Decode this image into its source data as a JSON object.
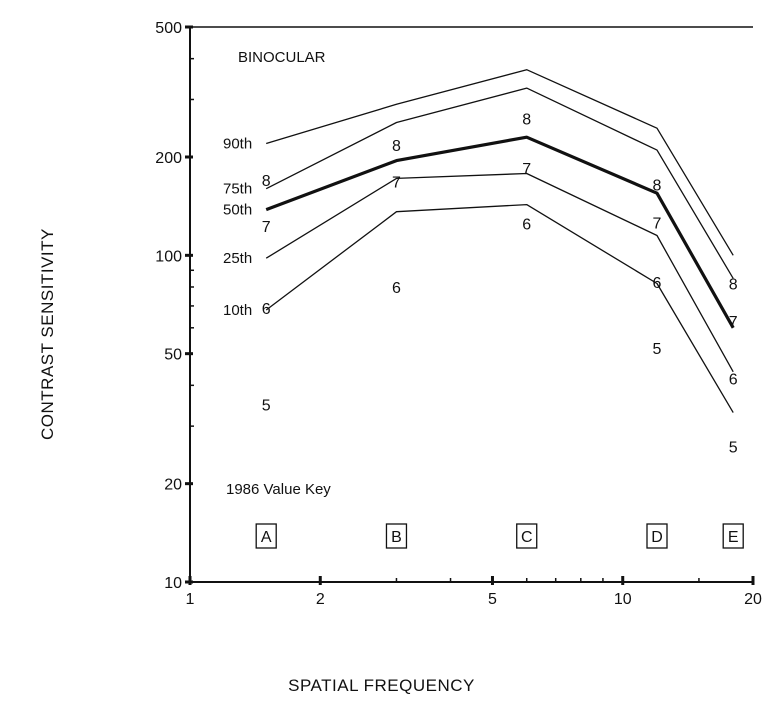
{
  "chart_data": {
    "type": "line",
    "title": "",
    "xlabel": "SPATIAL FREQUENCY",
    "ylabel": "CONTRAST SENSITIVITY",
    "x_scale": "log",
    "y_scale": "log",
    "xlim": [
      1,
      20
    ],
    "ylim": [
      10,
      500
    ],
    "x_ticks": [
      1,
      2,
      5,
      10,
      20
    ],
    "x_tick_labels": [
      "1",
      "2",
      "5",
      "10",
      "20"
    ],
    "y_ticks": [
      10,
      20,
      50,
      100,
      200,
      500
    ],
    "y_tick_labels": [
      "10",
      "20",
      "50",
      "100",
      "200",
      "500"
    ],
    "grid": false,
    "legend": "none",
    "x": [
      1.5,
      3,
      6,
      12,
      18
    ],
    "series": [
      {
        "name": "90th",
        "values": [
          220,
          290,
          370,
          245,
          100
        ],
        "style": "thin"
      },
      {
        "name": "75th",
        "values": [
          160,
          255,
          325,
          210,
          85
        ],
        "style": "thin"
      },
      {
        "name": "50th",
        "values": [
          138,
          195,
          230,
          155,
          60
        ],
        "style": "bold"
      },
      {
        "name": "25th",
        "values": [
          98,
          172,
          178,
          115,
          44
        ],
        "style": "thin"
      },
      {
        "name": "10th",
        "values": [
          68,
          136,
          143,
          82,
          33
        ],
        "style": "thin"
      }
    ],
    "annotations": {
      "title_in_plot": "BINOCULAR",
      "key_label": "1986 Value Key",
      "key_letters": [
        "A",
        "B",
        "C",
        "D",
        "E"
      ],
      "value_digits": [
        {
          "text": "8",
          "x": 1.5,
          "y": 170
        },
        {
          "text": "7",
          "x": 1.5,
          "y": 123
        },
        {
          "text": "6",
          "x": 1.5,
          "y": 69
        },
        {
          "text": "5",
          "x": 1.5,
          "y": 35
        },
        {
          "text": "8",
          "x": 3,
          "y": 218
        },
        {
          "text": "7",
          "x": 3,
          "y": 168
        },
        {
          "text": "6",
          "x": 3,
          "y": 80
        },
        {
          "text": "8",
          "x": 6,
          "y": 262
        },
        {
          "text": "7",
          "x": 6,
          "y": 185
        },
        {
          "text": "6",
          "x": 6,
          "y": 125
        },
        {
          "text": "8",
          "x": 12,
          "y": 165
        },
        {
          "text": "7",
          "x": 12,
          "y": 126
        },
        {
          "text": "6",
          "x": 12,
          "y": 83
        },
        {
          "text": "5",
          "x": 12,
          "y": 52
        },
        {
          "text": "8",
          "x": 18,
          "y": 82
        },
        {
          "text": "7",
          "x": 18,
          "y": 63
        },
        {
          "text": "6",
          "x": 18,
          "y": 42
        },
        {
          "text": "5",
          "x": 18,
          "y": 26
        }
      ]
    }
  }
}
